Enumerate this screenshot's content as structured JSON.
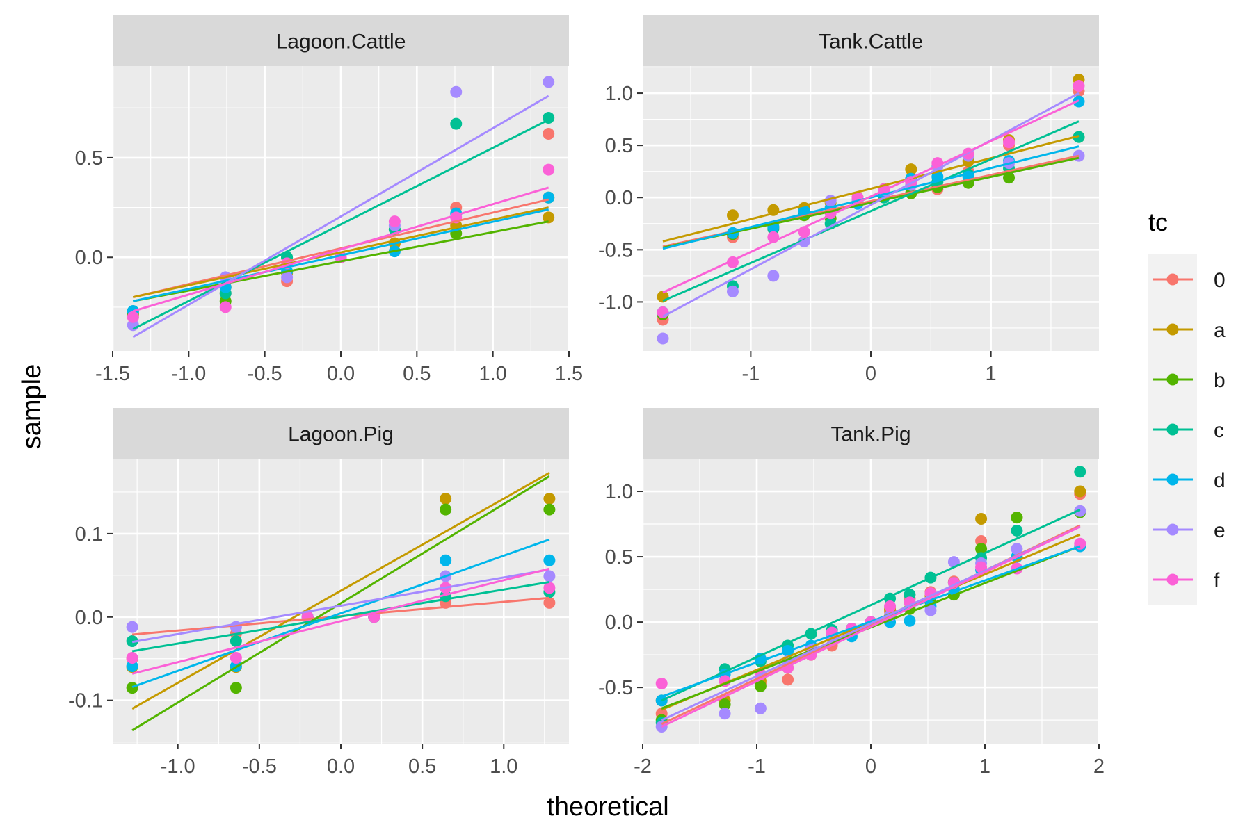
{
  "figure": {
    "xlabel": "theoretical",
    "ylabel": "sample",
    "legend_title": "tc",
    "legend_position": "right",
    "colors": {
      "panel_bg": "#EBEBEB",
      "strip_bg": "#D9D9D9",
      "grid": "#FFFFFF",
      "text": "#4D4D4D",
      "title_text": "#1A1A1A"
    }
  },
  "legend": [
    {
      "key": "0",
      "color": "#F8766D"
    },
    {
      "key": "a",
      "color": "#C49A00"
    },
    {
      "key": "b",
      "color": "#53B400"
    },
    {
      "key": "c",
      "color": "#00C094"
    },
    {
      "key": "d",
      "color": "#00B6EB"
    },
    {
      "key": "e",
      "color": "#A58AFF"
    },
    {
      "key": "f",
      "color": "#FB61D7"
    }
  ],
  "chart_data": [
    {
      "type": "scatter",
      "panel": "Lagoon.Cattle",
      "xlim": [
        -1.5,
        1.5
      ],
      "ylim": [
        -0.47,
        0.96
      ],
      "xticks": [
        -1.5,
        -1.0,
        -0.5,
        0.0,
        0.5,
        1.0,
        1.5
      ],
      "xtick_labels": [
        "-1.5",
        "-1.0",
        "-0.5",
        "0.0",
        "0.5",
        "1.0",
        "1.5"
      ],
      "yticks": [
        0.0,
        0.5
      ],
      "ytick_labels": [
        "0.0",
        "0.5"
      ],
      "x": [
        -1.366,
        -0.758,
        -0.354,
        0.0,
        0.354,
        0.758,
        1.366
      ],
      "series": [
        {
          "key": "0",
          "values": [
            -0.3,
            -0.18,
            -0.12,
            0.0,
            0.07,
            0.25,
            0.62
          ],
          "line": [
            -0.2,
            0.29
          ]
        },
        {
          "key": "a",
          "values": [
            -0.29,
            -0.15,
            -0.08,
            0.0,
            0.07,
            0.16,
            0.2
          ],
          "line": [
            -0.2,
            0.25
          ]
        },
        {
          "key": "b",
          "values": [
            -0.28,
            -0.22,
            0.0,
            0.0,
            0.14,
            0.12,
            0.3
          ],
          "line": [
            -0.22,
            0.18
          ]
        },
        {
          "key": "c",
          "values": [
            -0.27,
            -0.18,
            0.0,
            0.0,
            0.14,
            0.67,
            0.7
          ],
          "line": [
            -0.36,
            0.69
          ]
        },
        {
          "key": "d",
          "values": [
            -0.27,
            -0.15,
            -0.07,
            0.0,
            0.03,
            0.22,
            0.3
          ],
          "line": [
            -0.22,
            0.24
          ]
        },
        {
          "key": "e",
          "values": [
            -0.34,
            -0.1,
            -0.1,
            0.0,
            0.16,
            0.83,
            0.88
          ],
          "line": [
            -0.4,
            0.81
          ]
        },
        {
          "key": "f",
          "values": [
            -0.3,
            -0.25,
            -0.03,
            0.0,
            0.18,
            0.2,
            0.44
          ],
          "line": [
            -0.27,
            0.35
          ]
        }
      ]
    },
    {
      "type": "scatter",
      "panel": "Tank.Cattle",
      "xlim": [
        -1.9,
        1.9
      ],
      "ylim": [
        -1.47,
        1.26
      ],
      "xticks": [
        -1,
        0,
        1
      ],
      "xtick_labels": [
        "-1",
        "0",
        "1"
      ],
      "yticks": [
        -1.0,
        -0.5,
        0.0,
        0.5,
        1.0
      ],
      "ytick_labels": [
        "-1.0",
        "-0.5",
        "0.0",
        "0.5",
        "1.0"
      ],
      "x": [
        -1.732,
        -1.15,
        -0.812,
        -0.555,
        -0.335,
        -0.11,
        0.11,
        0.335,
        0.555,
        0.812,
        1.15,
        1.732
      ],
      "series": [
        {
          "key": "0",
          "values": [
            -1.17,
            -0.38,
            -0.3,
            -0.15,
            -0.1,
            -0.02,
            0.05,
            0.15,
            0.08,
            0.25,
            0.5,
            1.02
          ],
          "line": [
            -0.47,
            0.4
          ]
        },
        {
          "key": "a",
          "values": [
            -0.95,
            -0.17,
            -0.12,
            -0.1,
            -0.05,
            0.0,
            0.08,
            0.27,
            0.3,
            0.35,
            0.55,
            1.13
          ],
          "line": [
            -0.42,
            0.59
          ]
        },
        {
          "key": "b",
          "values": [
            -1.12,
            -0.35,
            -0.28,
            -0.17,
            -0.2,
            -0.05,
            0.05,
            0.04,
            0.1,
            0.14,
            0.19,
            0.58
          ],
          "line": [
            -0.48,
            0.38
          ]
        },
        {
          "key": "c",
          "values": [
            -1.1,
            -0.85,
            -0.3,
            -0.15,
            -0.25,
            -0.05,
            0.0,
            0.18,
            0.15,
            0.22,
            0.28,
            0.58
          ],
          "line": [
            -0.99,
            0.73
          ]
        },
        {
          "key": "d",
          "values": [
            -1.1,
            -0.34,
            -0.28,
            -0.13,
            -0.1,
            -0.06,
            0.05,
            0.18,
            0.2,
            0.2,
            0.35,
            0.92
          ],
          "line": [
            -0.49,
            0.49
          ]
        },
        {
          "key": "e",
          "values": [
            -1.35,
            -0.9,
            -0.75,
            -0.42,
            -0.03,
            -0.02,
            0.07,
            0.12,
            0.3,
            0.4,
            0.33,
            0.4
          ],
          "line": [
            -1.14,
            1.0
          ]
        },
        {
          "key": "f",
          "values": [
            -1.1,
            -0.62,
            -0.38,
            -0.33,
            -0.15,
            0.0,
            0.08,
            0.15,
            0.33,
            0.42,
            0.53,
            1.07
          ],
          "line": [
            -0.91,
            0.93
          ]
        }
      ]
    },
    {
      "type": "scatter",
      "panel": "Lagoon.Pig",
      "xlim": [
        -1.4,
        1.4
      ],
      "ylim": [
        -0.152,
        0.19
      ],
      "xticks": [
        -1.0,
        -0.5,
        0.0,
        0.5,
        1.0
      ],
      "xtick_labels": [
        "-1.0",
        "-0.5",
        "0.0",
        "0.5",
        "1.0"
      ],
      "yticks": [
        -0.1,
        0.0,
        0.1
      ],
      "ytick_labels": [
        "-0.1",
        "0.0",
        "0.1"
      ],
      "x": [
        -1.28,
        -0.643,
        -0.204,
        0.204,
        0.643,
        1.28
      ],
      "series": [
        {
          "key": "0",
          "values": [
            -0.05,
            -0.02,
            0.0,
            0.0,
            0.017,
            0.017
          ],
          "line": [
            -0.021,
            0.023
          ]
        },
        {
          "key": "a",
          "values": [
            -0.06,
            -0.06,
            0.0,
            0.0,
            0.142,
            0.142
          ],
          "line": [
            -0.11,
            0.173
          ]
        },
        {
          "key": "b",
          "values": [
            -0.085,
            -0.085,
            0.0,
            0.0,
            0.129,
            0.129
          ],
          "line": [
            -0.136,
            0.169
          ]
        },
        {
          "key": "c",
          "values": [
            -0.029,
            -0.029,
            0.0,
            0.0,
            0.025,
            0.03
          ],
          "line": [
            -0.041,
            0.042
          ]
        },
        {
          "key": "d",
          "values": [
            -0.059,
            -0.059,
            0.0,
            0.0,
            0.068,
            0.068
          ],
          "line": [
            -0.084,
            0.093
          ]
        },
        {
          "key": "e",
          "values": [
            -0.012,
            -0.012,
            0.0,
            0.0,
            0.049,
            0.049
          ],
          "line": [
            -0.03,
            0.057
          ]
        },
        {
          "key": "f",
          "values": [
            -0.049,
            -0.049,
            0.0,
            0.0,
            0.035,
            0.035
          ],
          "line": [
            -0.068,
            0.058
          ]
        }
      ]
    },
    {
      "type": "scatter",
      "panel": "Tank.Pig",
      "xlim": [
        -2.0,
        2.0
      ],
      "ylim": [
        -0.93,
        1.25
      ],
      "xticks": [
        -2,
        -1,
        0,
        1,
        2
      ],
      "xtick_labels": [
        "-2",
        "-1",
        "0",
        "1",
        "2"
      ],
      "yticks": [
        -0.5,
        0.0,
        0.5,
        1.0
      ],
      "ytick_labels": [
        "-0.5",
        "0.0",
        "0.5",
        "1.0"
      ],
      "x": [
        -1.834,
        -1.28,
        -0.967,
        -0.728,
        -0.524,
        -0.341,
        -0.168,
        0.0,
        0.168,
        0.341,
        0.524,
        0.728,
        0.967,
        1.28,
        1.834
      ],
      "series": [
        {
          "key": "0",
          "values": [
            -0.7,
            -0.45,
            -0.47,
            -0.44,
            -0.25,
            -0.18,
            -0.08,
            0.0,
            0.08,
            0.18,
            0.23,
            0.31,
            0.62,
            0.41,
            0.98
          ],
          "line": [
            -0.78,
            0.74
          ]
        },
        {
          "key": "a",
          "values": [
            -0.6,
            -0.6,
            -0.45,
            -0.35,
            -0.25,
            -0.1,
            -0.05,
            0.0,
            0.1,
            0.15,
            0.2,
            0.3,
            0.79,
            0.8,
            1.0
          ],
          "line": [
            -0.67,
            0.67
          ]
        },
        {
          "key": "b",
          "values": [
            -0.75,
            -0.63,
            -0.49,
            -0.3,
            -0.2,
            -0.12,
            -0.05,
            0.0,
            0.05,
            0.1,
            0.15,
            0.21,
            0.56,
            0.8,
            0.84
          ],
          "line": [
            -0.66,
            0.58
          ]
        },
        {
          "key": "c",
          "values": [
            -0.77,
            -0.36,
            -0.3,
            -0.18,
            -0.09,
            -0.06,
            -0.05,
            0.0,
            0.18,
            0.21,
            0.34,
            0.3,
            0.49,
            0.7,
            1.15
          ],
          "line": [
            -0.6,
            0.86
          ]
        },
        {
          "key": "d",
          "values": [
            -0.6,
            -0.4,
            -0.28,
            -0.22,
            -0.18,
            -0.1,
            -0.11,
            0.0,
            0.0,
            0.01,
            0.12,
            0.25,
            0.4,
            0.5,
            0.58
          ],
          "line": [
            -0.57,
            0.58
          ]
        },
        {
          "key": "e",
          "values": [
            -0.8,
            -0.7,
            -0.66,
            -0.3,
            -0.2,
            -0.12,
            -0.05,
            0.0,
            0.05,
            0.15,
            0.09,
            0.46,
            0.45,
            0.56,
            0.85
          ],
          "line": [
            -0.75,
            0.73
          ]
        },
        {
          "key": "f",
          "values": [
            -0.47,
            -0.45,
            -0.4,
            -0.35,
            -0.25,
            -0.08,
            -0.05,
            0.0,
            0.12,
            0.15,
            0.22,
            0.3,
            0.42,
            0.41,
            0.6
          ],
          "line": [
            -0.8,
            0.73
          ]
        }
      ]
    }
  ]
}
